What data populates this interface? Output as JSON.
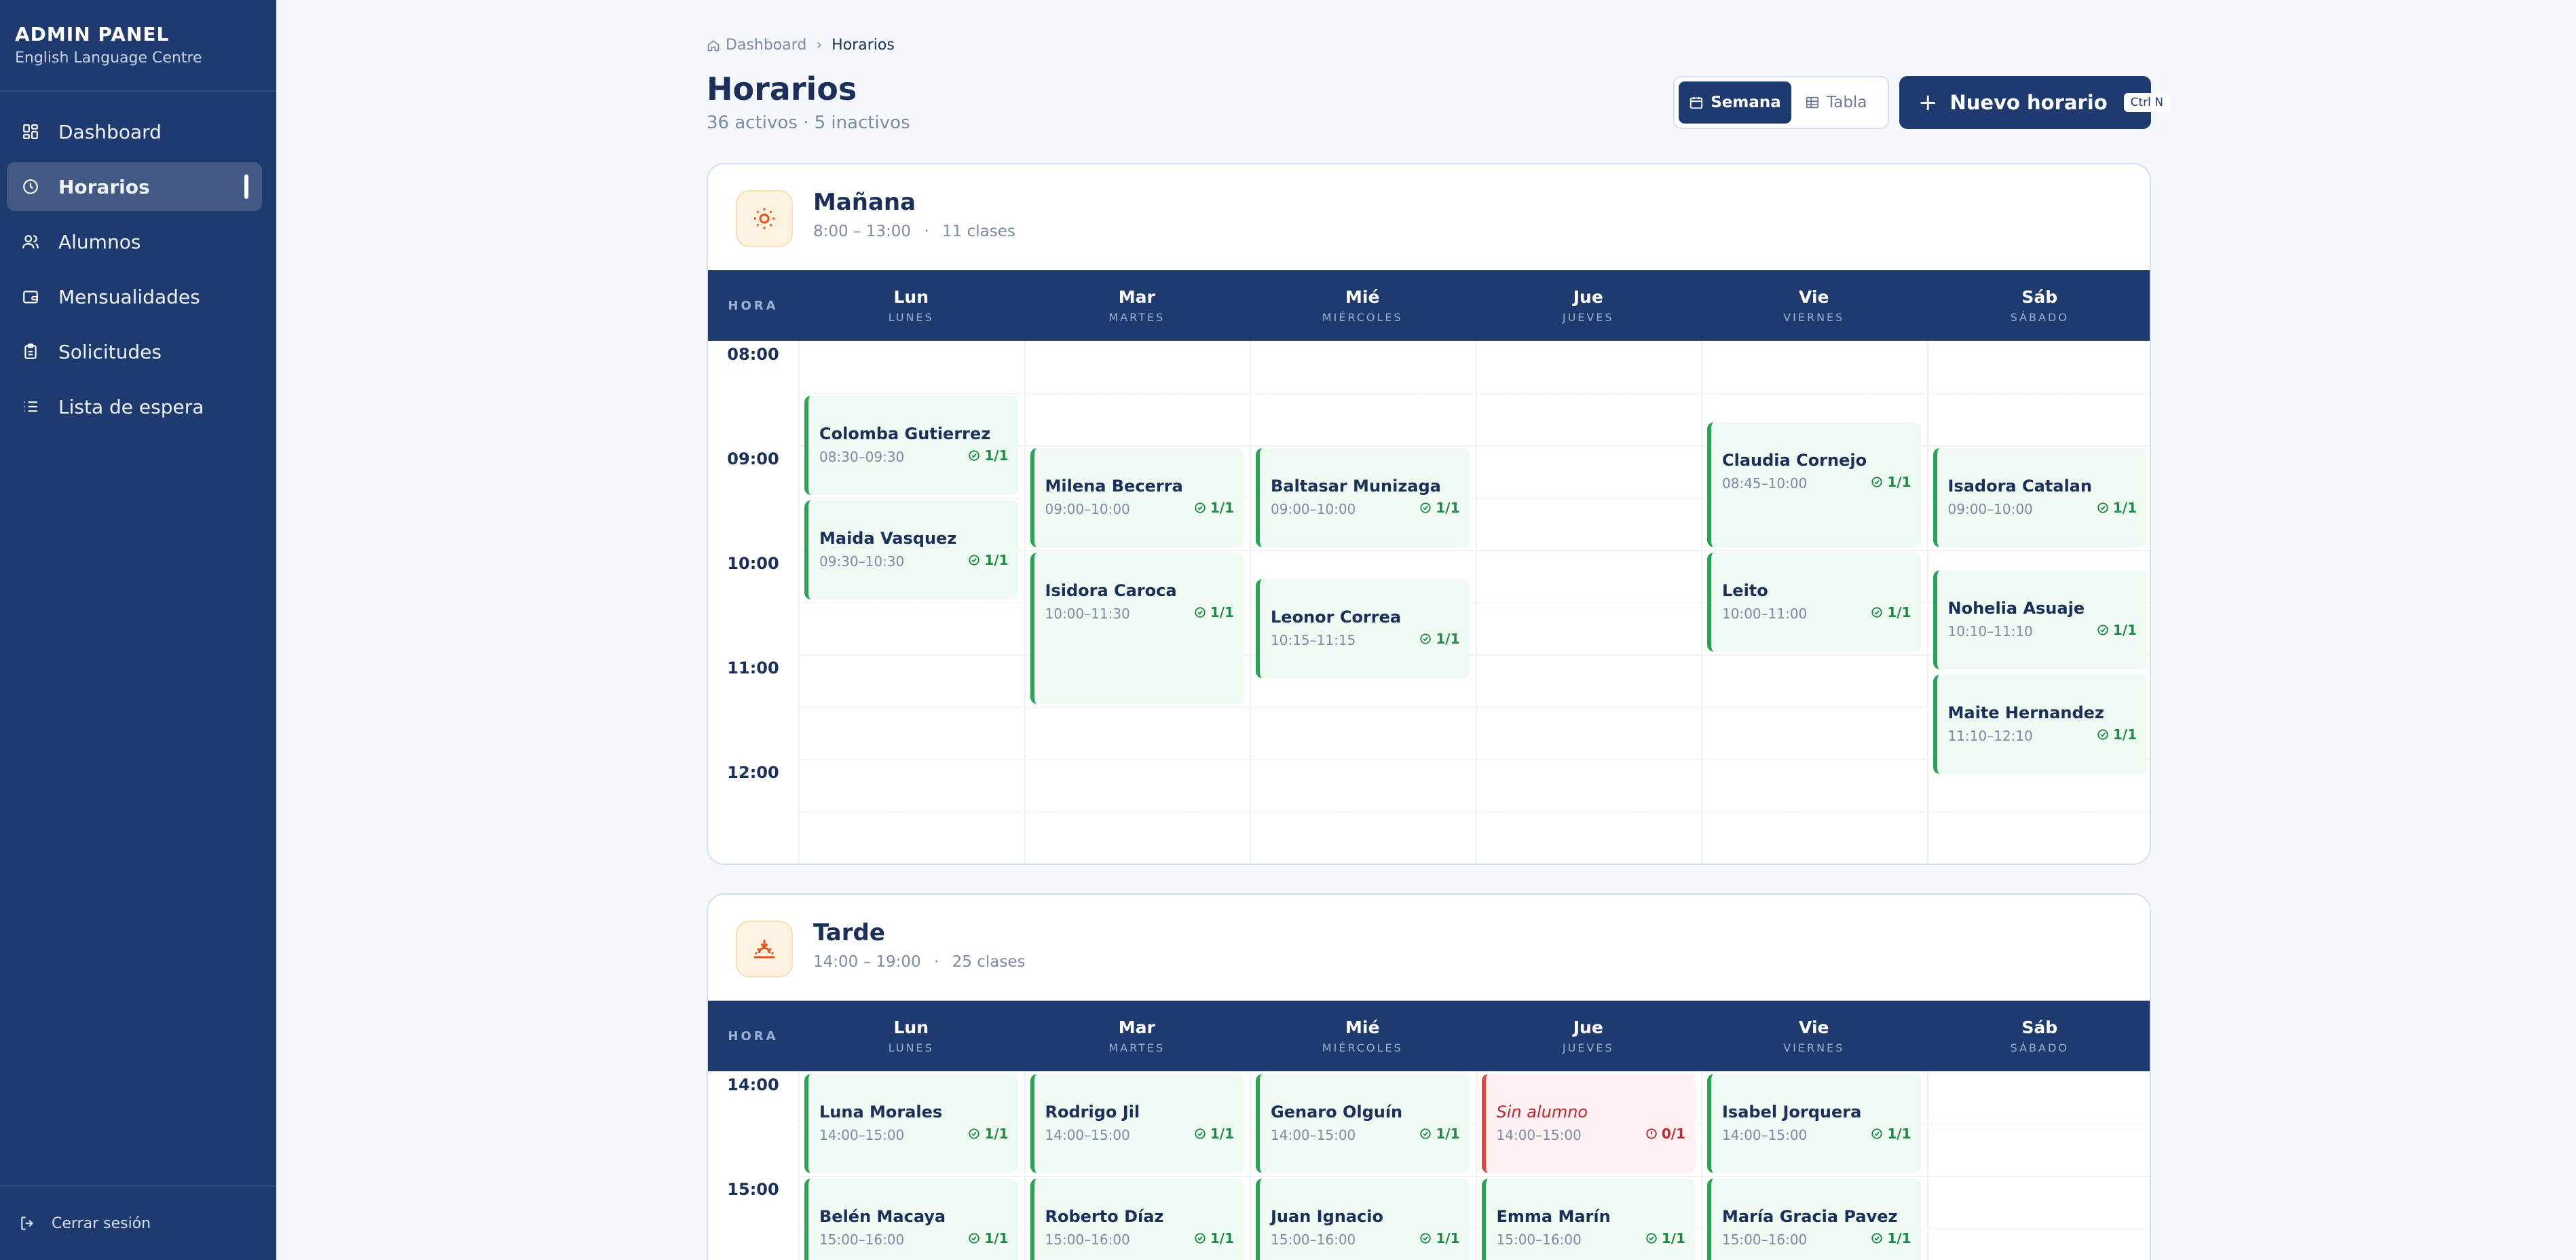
{
  "sidebar": {
    "title": "ADMIN PANEL",
    "subtitle": "English Language Centre",
    "items": [
      {
        "label": "Dashboard",
        "icon": "grid-icon"
      },
      {
        "label": "Horarios",
        "icon": "clock-icon",
        "active": true
      },
      {
        "label": "Alumnos",
        "icon": "users-icon"
      },
      {
        "label": "Mensualidades",
        "icon": "wallet-icon"
      },
      {
        "label": "Solicitudes",
        "icon": "clipboard-icon"
      },
      {
        "label": "Lista de espera",
        "icon": "list-icon"
      }
    ],
    "logout_label": "Cerrar sesión"
  },
  "breadcrumb": {
    "home": "Dashboard",
    "current": "Horarios"
  },
  "page": {
    "title": "Horarios",
    "subtitle": "36 activos · 5 inactivos"
  },
  "view_toggle": {
    "week_label": "Semana",
    "table_label": "Tabla",
    "selected": "Semana"
  },
  "new_button": {
    "label": "Nuevo horario",
    "shortcut": "Ctrl N"
  },
  "table_header": {
    "hour_label": "HORA"
  },
  "days": [
    {
      "short": "Lun",
      "long": "LUNES"
    },
    {
      "short": "Mar",
      "long": "MARTES"
    },
    {
      "short": "Mié",
      "long": "MIÉRCOLES"
    },
    {
      "short": "Jue",
      "long": "JUEVES"
    },
    {
      "short": "Vie",
      "long": "VIERNES"
    },
    {
      "short": "Sáb",
      "long": "SÁBADO"
    }
  ],
  "colors": {
    "primary": "#1e3a6e",
    "ok": "#2aa357",
    "empty": "#e2483d",
    "shift_icon": "#e8531d"
  },
  "shifts": [
    {
      "name": "Mañana",
      "range": "8:00 – 13:00",
      "count": "11 clases",
      "icon": "sun-icon",
      "hours": [
        "08:00",
        "09:00",
        "10:00",
        "11:00",
        "12:00"
      ],
      "classes": [
        {
          "day": 0,
          "name": "Colomba Gutierrez",
          "time": "08:30–09:30",
          "cap": "1/1",
          "status": "ok"
        },
        {
          "day": 0,
          "name": "Maida Vasquez",
          "time": "09:30–10:30",
          "cap": "1/1",
          "status": "ok"
        },
        {
          "day": 1,
          "name": "Milena Becerra",
          "time": "09:00–10:00",
          "cap": "1/1",
          "status": "ok"
        },
        {
          "day": 1,
          "name": "Isidora Caroca",
          "time": "10:00–11:30",
          "cap": "1/1",
          "status": "ok"
        },
        {
          "day": 2,
          "name": "Baltasar Munizaga",
          "time": "09:00–10:00",
          "cap": "1/1",
          "status": "ok"
        },
        {
          "day": 2,
          "name": "Leonor Correa",
          "time": "10:15–11:15",
          "cap": "1/1",
          "status": "ok"
        },
        {
          "day": 4,
          "name": "Claudia Cornejo",
          "time": "08:45–10:00",
          "cap": "1/1",
          "status": "ok"
        },
        {
          "day": 4,
          "name": "Leito",
          "time": "10:00–11:00",
          "cap": "1/1",
          "status": "ok"
        },
        {
          "day": 5,
          "name": "Isadora Catalan",
          "time": "09:00–10:00",
          "cap": "1/1",
          "status": "ok"
        },
        {
          "day": 5,
          "name": "Nohelia Asuaje",
          "time": "10:10–11:10",
          "cap": "1/1",
          "status": "ok"
        },
        {
          "day": 5,
          "name": "Maite Hernandez",
          "time": "11:10–12:10",
          "cap": "1/1",
          "status": "ok"
        }
      ]
    },
    {
      "name": "Tarde",
      "range": "14:00 – 19:00",
      "count": "25 clases",
      "icon": "sunset-icon",
      "hours": [
        "14:00",
        "15:00"
      ],
      "classes": [
        {
          "day": 0,
          "name": "Luna Morales",
          "time": "14:00–15:00",
          "cap": "1/1",
          "status": "ok"
        },
        {
          "day": 1,
          "name": "Rodrigo Jil",
          "time": "14:00–15:00",
          "cap": "1/1",
          "status": "ok"
        },
        {
          "day": 2,
          "name": "Genaro Olguín",
          "time": "14:00–15:00",
          "cap": "1/1",
          "status": "ok"
        },
        {
          "day": 3,
          "name": "Sin alumno",
          "time": "14:00–15:00",
          "cap": "0/1",
          "status": "empty"
        },
        {
          "day": 4,
          "name": "Isabel Jorquera",
          "time": "14:00–15:00",
          "cap": "1/1",
          "status": "ok"
        },
        {
          "day": 0,
          "name": "Belén Macaya",
          "time": "15:00–16:00",
          "cap": "1/1",
          "status": "ok"
        },
        {
          "day": 1,
          "name": "Roberto Díaz",
          "time": "15:00–16:00",
          "cap": "1/1",
          "status": "ok"
        },
        {
          "day": 2,
          "name": "Juan Ignacio",
          "time": "15:00–16:00",
          "cap": "1/1",
          "status": "ok"
        },
        {
          "day": 3,
          "name": "Emma Marín",
          "time": "15:00–16:00",
          "cap": "1/1",
          "status": "ok"
        },
        {
          "day": 4,
          "name": "María Gracia Pavez",
          "time": "15:00–16:00",
          "cap": "1/1",
          "status": "ok"
        }
      ]
    }
  ]
}
